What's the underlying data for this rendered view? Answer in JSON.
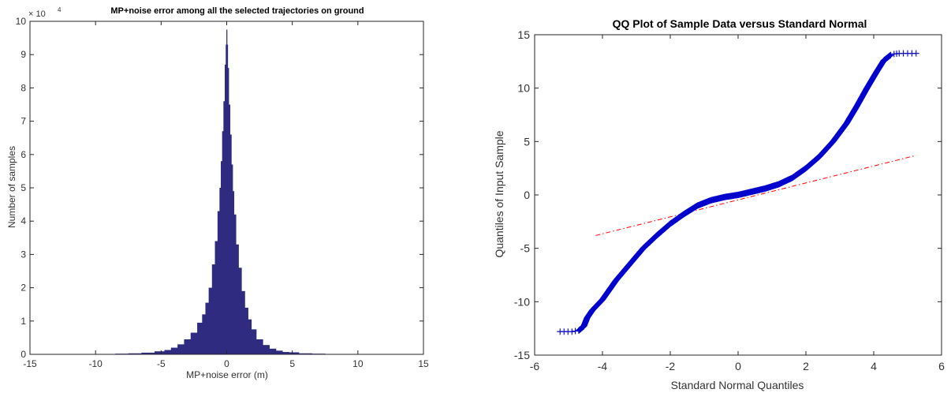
{
  "chart_data": [
    {
      "type": "bar",
      "title": "MP+noise error among all the selected trajectories on ground",
      "xlabel": "MP+noise error (m)",
      "ylabel": "Number of samples",
      "y_exponent_label": "× 10",
      "y_exponent_power": "4",
      "xlim": [
        -15,
        15
      ],
      "ylim": [
        0,
        10
      ],
      "xticks": [
        "-15",
        "-10",
        "-5",
        "0",
        "5",
        "10",
        "15"
      ],
      "yticks": [
        "0",
        "1",
        "2",
        "3",
        "4",
        "5",
        "6",
        "7",
        "8",
        "9",
        "10"
      ],
      "grid": false,
      "color": "#2e2b80",
      "bins": {
        "x": [
          -13,
          -12,
          -11,
          -10,
          -9,
          -8,
          -7,
          -6,
          -5,
          -4.5,
          -4,
          -3.5,
          -3,
          -2.5,
          -2,
          -1.75,
          -1.5,
          -1.25,
          -1,
          -0.8,
          -0.6,
          -0.5,
          -0.4,
          -0.3,
          -0.2,
          -0.1,
          -0.05,
          0,
          0.05,
          0.1,
          0.2,
          0.3,
          0.4,
          0.5,
          0.6,
          0.8,
          1,
          1.25,
          1.5,
          1.75,
          2,
          2.5,
          3,
          3.5,
          4,
          4.5,
          5,
          6,
          7,
          8,
          9,
          10,
          11,
          12,
          13
        ],
        "values": [
          0.01,
          0.01,
          0.01,
          0.01,
          0.01,
          0.02,
          0.03,
          0.05,
          0.09,
          0.13,
          0.2,
          0.3,
          0.45,
          0.65,
          0.95,
          1.2,
          1.55,
          2.0,
          2.7,
          3.4,
          4.3,
          5.0,
          5.8,
          6.7,
          7.6,
          8.7,
          9.3,
          9.75,
          9.3,
          8.6,
          7.5,
          6.6,
          5.7,
          4.9,
          4.2,
          3.3,
          2.6,
          1.9,
          1.4,
          1.05,
          0.75,
          0.45,
          0.28,
          0.17,
          0.11,
          0.07,
          0.06,
          0.03,
          0.02,
          0.01,
          0.01,
          0.01,
          0.01,
          0.01,
          0.01
        ]
      }
    },
    {
      "type": "scatter",
      "title": "QQ Plot of Sample Data versus Standard Normal",
      "xlabel": "Standard Normal Quantiles",
      "ylabel": "Quantiles of Input Sample",
      "xlim": [
        -6,
        6
      ],
      "ylim": [
        -15,
        15
      ],
      "xticks": [
        "-6",
        "-4",
        "-2",
        "0",
        "2",
        "4",
        "6"
      ],
      "yticks": [
        "-15",
        "-10",
        "-5",
        "0",
        "5",
        "10",
        "15"
      ],
      "grid": false,
      "marker": "+",
      "marker_color": "#0000cc",
      "sample_curve": {
        "x": [
          -5.25,
          -4.9,
          -4.7,
          -4.55,
          -4.45,
          -4.3,
          -4.0,
          -3.6,
          -3.2,
          -2.8,
          -2.4,
          -2.0,
          -1.6,
          -1.2,
          -0.8,
          -0.4,
          0,
          0.4,
          0.8,
          1.2,
          1.6,
          2.0,
          2.4,
          2.8,
          3.2,
          3.5,
          3.8,
          4.1,
          4.3,
          4.5,
          4.6,
          4.75,
          5.0,
          5.25
        ],
        "y": [
          -12.8,
          -12.8,
          -12.7,
          -12.3,
          -11.5,
          -10.8,
          -9.8,
          -8.0,
          -6.5,
          -5.0,
          -3.8,
          -2.7,
          -1.8,
          -1.0,
          -0.5,
          -0.2,
          0,
          0.3,
          0.6,
          1.0,
          1.6,
          2.5,
          3.6,
          5.0,
          6.7,
          8.3,
          10.0,
          11.6,
          12.6,
          13.1,
          13.2,
          13.25,
          13.25,
          13.25
        ]
      },
      "reference_line": {
        "x": [
          -4.2,
          5.25
        ],
        "y": [
          -3.8,
          3.7
        ],
        "style": "dash-dot",
        "color": "#ff0000"
      }
    }
  ]
}
